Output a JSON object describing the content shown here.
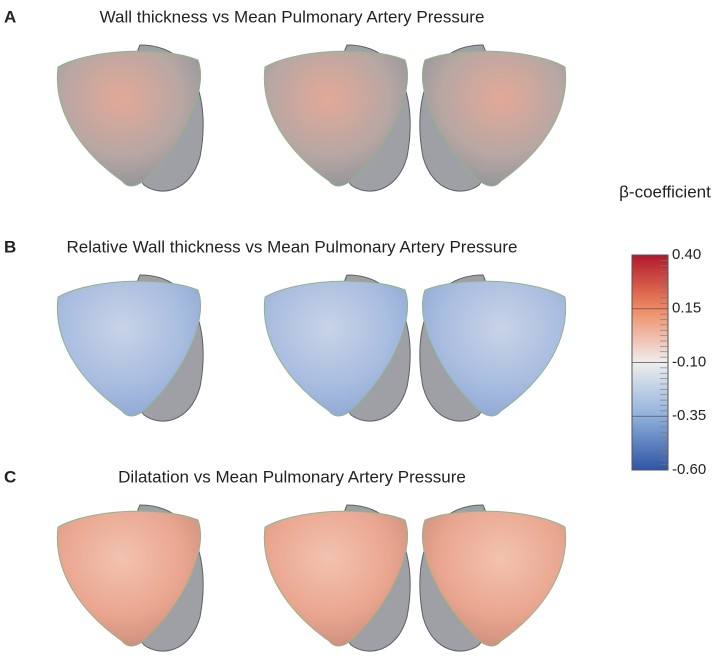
{
  "panels": [
    {
      "letter": "A",
      "title": "Wall thickness vs Mean Pulmonary Artery Pressure"
    },
    {
      "letter": "B",
      "title": "Relative Wall thickness vs Mean Pulmonary Artery Pressure"
    },
    {
      "letter": "C",
      "title": "Dilatation vs Mean Pulmonary Artery Pressure"
    }
  ],
  "colorbar": {
    "title": "β-coefficient",
    "lim": [
      -0.6,
      0.4
    ],
    "ticks": [
      {
        "value": 0.4,
        "label": "0.40"
      },
      {
        "value": 0.15,
        "label": "0.15"
      },
      {
        "value": -0.1,
        "label": "-0.10"
      },
      {
        "value": -0.35,
        "label": "-0.35"
      },
      {
        "value": -0.6,
        "label": "-0.60"
      }
    ]
  }
}
